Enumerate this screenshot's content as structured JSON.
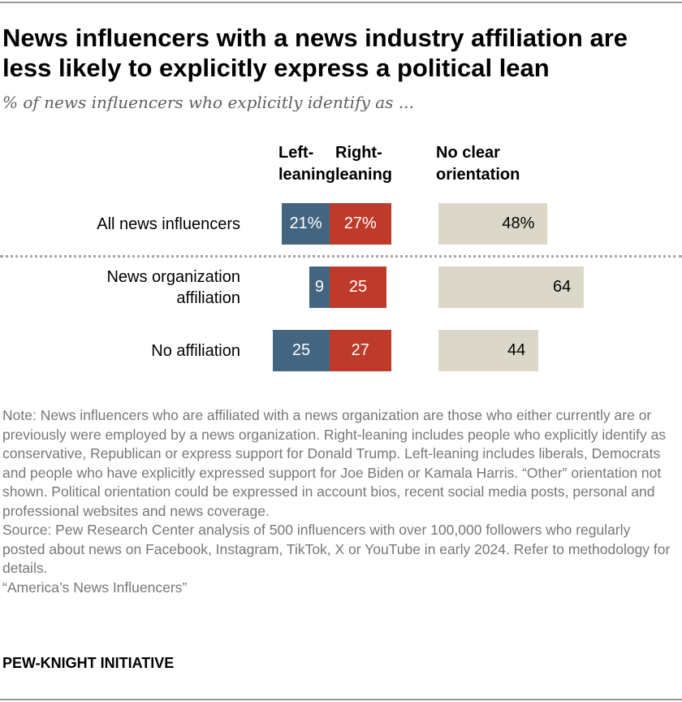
{
  "title": "News influencers with a news industry affiliation are less likely to explicitly express a political lean",
  "subtitle": "% of news influencers who explicitly identify as ...",
  "chart_data": {
    "type": "bar",
    "orientation": "horizontal",
    "stacked_diverging": true,
    "columns": [
      "Left-leaning",
      "Right-leaning",
      "No clear orientation"
    ],
    "column_headers": {
      "left": [
        "Left-",
        "leaning"
      ],
      "right": [
        "Right-",
        "leaning"
      ],
      "none": [
        "No clear",
        "orientation"
      ]
    },
    "categories": [
      "All news influencers",
      "News organization affiliation",
      "No affiliation"
    ],
    "category_lines": [
      [
        "All news influencers"
      ],
      [
        "News organization",
        "affiliation"
      ],
      [
        "No affiliation"
      ]
    ],
    "series": [
      {
        "name": "Left-leaning",
        "values": [
          21,
          9,
          25
        ],
        "labels": [
          "21%",
          "9",
          "25"
        ]
      },
      {
        "name": "Right-leaning",
        "values": [
          27,
          25,
          27
        ],
        "labels": [
          "27%",
          "25",
          "27"
        ]
      },
      {
        "name": "No clear orientation",
        "values": [
          48,
          64,
          44
        ],
        "labels": [
          "48%",
          "64",
          "44"
        ]
      }
    ],
    "colors": {
      "left": "#436580",
      "right": "#be3a2a",
      "none": "#dcd8c9"
    },
    "separator_after_row": 0
  },
  "notes": [
    "Note: News influencers who are affiliated with a news organization are those who either currently are or previously were employed by a news organization. Right-leaning includes people who explicitly identify as conservative, Republican or express support for Donald Trump. Left-leaning includes liberals, Democrats and people who have explicitly expressed support for Joe Biden or Kamala Harris. “Other” orientation not shown. Political orientation could be expressed in account bios, recent social media posts, personal and professional websites and news coverage.",
    "Source: Pew Research Center analysis of 500 influencers with over 100,000 followers who regularly posted about news on Facebook, Instagram, TikTok, X or YouTube in early 2024. Refer to methodology for details.",
    "“America’s News Influencers”"
  ],
  "footer": "PEW-KNIGHT INITIATIVE"
}
